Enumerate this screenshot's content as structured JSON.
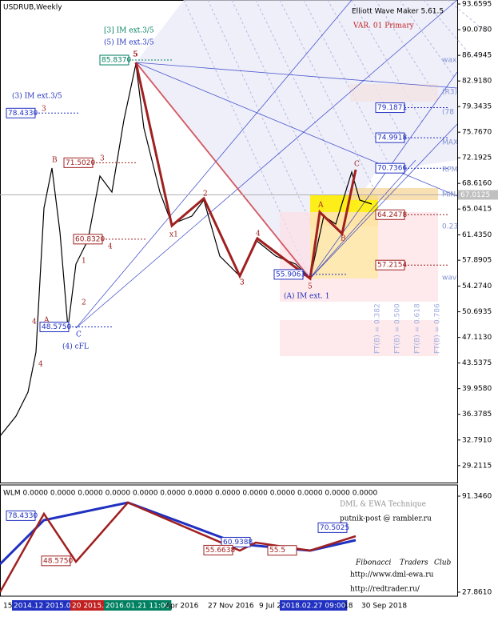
{
  "header": {
    "symbol": "USDRUB,Weekly",
    "indicator": "Elliott Wave Maker 5.61.5",
    "variant": "VAR. 01 Primary"
  },
  "main_panel": {
    "ylim": [
      26.85,
      94.22
    ],
    "yticks": [
      {
        "value": 93.6595,
        "label": "93.6595"
      },
      {
        "value": 90.078,
        "label": "90.0780"
      },
      {
        "value": 86.4945,
        "label": "86.4945"
      },
      {
        "value": 82.918,
        "label": "82.9180"
      },
      {
        "value": 79.3435,
        "label": "79.3435"
      },
      {
        "value": 75.767,
        "label": "75.7670"
      },
      {
        "value": 72.1925,
        "label": "72.1925"
      },
      {
        "value": 68.616,
        "label": "68.6160"
      },
      {
        "value": 65.0415,
        "label": "65.0415"
      },
      {
        "value": 61.435,
        "label": "61.4350"
      },
      {
        "value": 57.8905,
        "label": "57.8905"
      },
      {
        "value": 54.274,
        "label": "54.2740"
      },
      {
        "value": 50.6935,
        "label": "50.6935"
      },
      {
        "value": 47.113,
        "label": "47.1130"
      },
      {
        "value": 43.5375,
        "label": "43.5375"
      },
      {
        "value": 39.958,
        "label": "39.9580"
      },
      {
        "value": 36.3785,
        "label": "36.3785"
      },
      {
        "value": 32.791,
        "label": "32.7910"
      },
      {
        "value": 29.2115,
        "label": "29.2115"
      }
    ],
    "current_price": {
      "value": 67.0125,
      "label": "67.0125"
    },
    "price_labels": [
      {
        "value": 85.837,
        "label": "85.8370"
      },
      {
        "value": 78.433,
        "label": "78.4330"
      },
      {
        "value": 71.502,
        "label": "71.5020"
      },
      {
        "value": 60.832,
        "label": "60.8320"
      },
      {
        "value": 55.9063,
        "label": "55.9063"
      },
      {
        "value": 48.575,
        "label": "48.5750"
      },
      {
        "value": 79.1871,
        "label": "79.1871"
      },
      {
        "value": 74.9918,
        "label": "74.9918"
      },
      {
        "value": 70.7366,
        "label": "70.7366"
      },
      {
        "value": 64.2478,
        "label": "64.2478"
      },
      {
        "value": 57.2154,
        "label": "57.2154"
      }
    ],
    "wave_labels": [
      "5",
      "3",
      "B",
      "A",
      "4",
      "C",
      "3",
      "4",
      "(4) cFL",
      "(3) IM ext.3/5",
      "[3] IM ext.3/5",
      "(5) IM ext.3/5",
      "x1",
      "2",
      "1",
      "4",
      "3",
      "3",
      "5",
      "4",
      "A",
      "B",
      "C",
      "5",
      "(A) IM ext. 1",
      "2"
    ],
    "level_tags": [
      "wax",
      "(R3)",
      "(78",
      "MAX",
      "RPM",
      "MIN",
      "0.23",
      "wav"
    ],
    "fib_labels": [
      "FT(B) = 0.382",
      "FT(B) = 0.500",
      "FT(B) = 0.618",
      "FT(B) = 0.786"
    ]
  },
  "indicator_panel": {
    "title": "WLM 0.0000 0.0000 0.0000 0.0000 0.0000 0.0000 0.0000 0.0000 0.0000 0.0000 0.0000 0.0000 0.0000",
    "ylim": [
      25.2,
      98.75
    ],
    "yticks": [
      {
        "value": 91.346,
        "label": "91.3460"
      },
      {
        "value": 27.861,
        "label": "27.8610"
      }
    ],
    "price_labels": [
      {
        "value": 78.433,
        "label": "78.4330"
      },
      {
        "value": 48.575,
        "label": "48.5750"
      },
      {
        "value": 60.9388,
        "label": "60.9388"
      },
      {
        "value": 55.6638,
        "label": "55.6638"
      },
      {
        "value": 55.5,
        "label": "55.5"
      },
      {
        "value": 70.5025,
        "label": "70.5025"
      }
    ],
    "credits": [
      "DML & EWA Technique",
      "putnik-post @ rambler.ru",
      "Fibonacci",
      "Traders",
      "Club",
      "http://www.dml-ewa.ru",
      "http://redtrader.ru/"
    ]
  },
  "time_axis": [
    "15",
    "2014.12.1",
    "2015.0",
    "20 2015.1",
    "2016.01.21 11:00",
    "Apr 2016",
    "27 Nov 2016",
    "9 Jul 2",
    "2018.02.27 09:00",
    "18",
    "30 Sep 2018"
  ]
}
